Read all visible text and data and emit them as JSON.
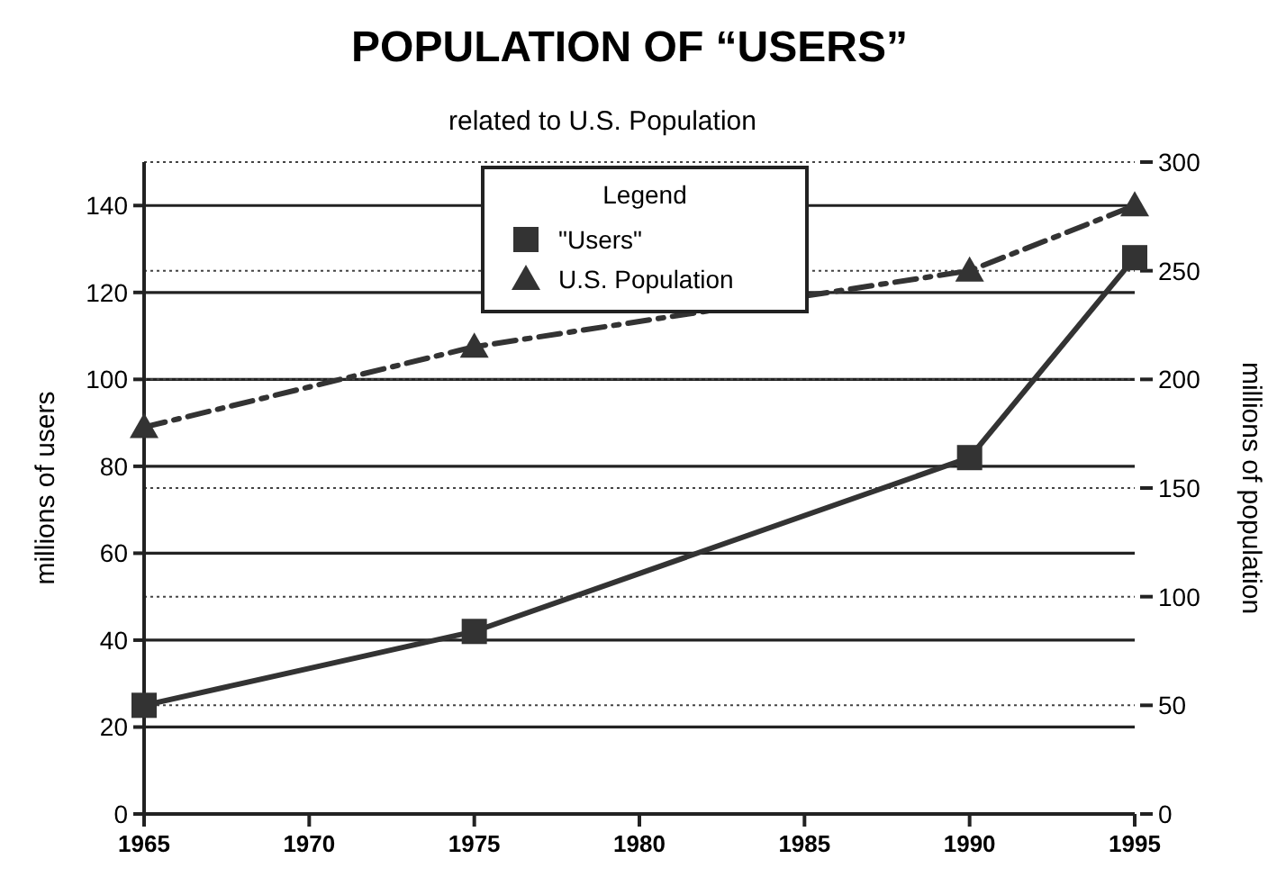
{
  "chart_data": {
    "type": "line",
    "title": "POPULATION OF “USERS”",
    "subtitle": "related to U.S. Population",
    "ylabel": "millions of users",
    "y2label": "millions of population",
    "legend_title": "Legend",
    "legend": "top",
    "grid": true,
    "x": [
      1965,
      1975,
      1990,
      1995
    ],
    "xlim": [
      1965,
      1995
    ],
    "xticks": [
      1965,
      1970,
      1975,
      1980,
      1985,
      1990,
      1995
    ],
    "ylim": [
      0,
      150
    ],
    "yticks": [
      0,
      20,
      40,
      60,
      80,
      {
        "value": 100,
        "label": "100"
      },
      120,
      140
    ],
    "y2lim": [
      0,
      300
    ],
    "y2ticks": [
      0,
      50,
      100,
      150,
      200,
      250,
      300
    ],
    "series": [
      {
        "name": "\"Users\"",
        "color": "#333333",
        "values": [
          25,
          42,
          82,
          128
        ],
        "marker": "square",
        "line_style": "solid"
      },
      {
        "name": "U.S. Population",
        "color": "#333333",
        "values": [
          178,
          215,
          250,
          280
        ],
        "axis": "y2",
        "marker": "triangle",
        "line_style": "dashed"
      }
    ]
  }
}
